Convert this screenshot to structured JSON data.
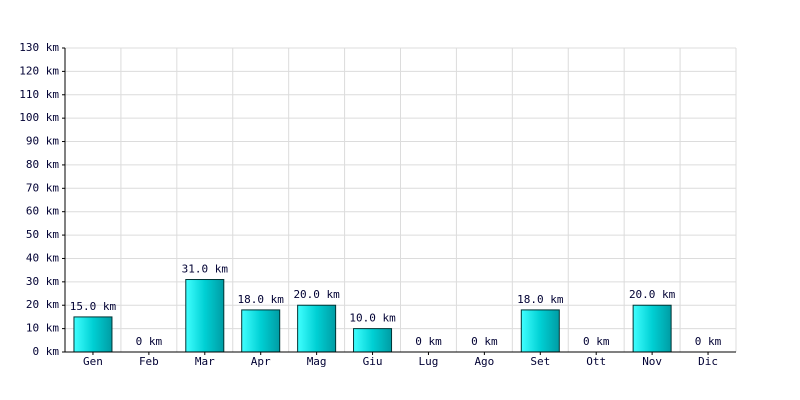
{
  "chart_data": {
    "type": "bar",
    "categories": [
      "Gen",
      "Feb",
      "Mar",
      "Apr",
      "Mag",
      "Giu",
      "Lug",
      "Ago",
      "Set",
      "Ott",
      "Nov",
      "Dic"
    ],
    "values": [
      15,
      0,
      31,
      18,
      20,
      10,
      0,
      0,
      18,
      0,
      20,
      0
    ],
    "value_labels": [
      "15.0 km",
      "0 km",
      "31.0 km",
      "18.0 km",
      "20.0 km",
      "10.0 km",
      "0 km",
      "0 km",
      "18.0 km",
      "0 km",
      "20.0 km",
      "0 km"
    ],
    "color": "#00c8cc",
    "ylim": [
      0,
      130
    ],
    "yticks": [
      {
        "value": 0,
        "label": "0 km"
      },
      {
        "value": 10,
        "label": "10 km"
      },
      {
        "value": 20,
        "label": "20 km"
      },
      {
        "value": 30,
        "label": "30 km"
      },
      {
        "value": 40,
        "label": "40 km"
      },
      {
        "value": 50,
        "label": "50 km"
      },
      {
        "value": 60,
        "label": "60 km"
      },
      {
        "value": 70,
        "label": "70 km"
      },
      {
        "value": 80,
        "label": "80 km"
      },
      {
        "value": 90,
        "label": "90 km"
      },
      {
        "value": 100,
        "label": "100 km"
      },
      {
        "value": 110,
        "label": "110 km"
      },
      {
        "value": 120,
        "label": "120 km"
      },
      {
        "value": 130,
        "label": "130 km"
      }
    ],
    "grid": true
  }
}
